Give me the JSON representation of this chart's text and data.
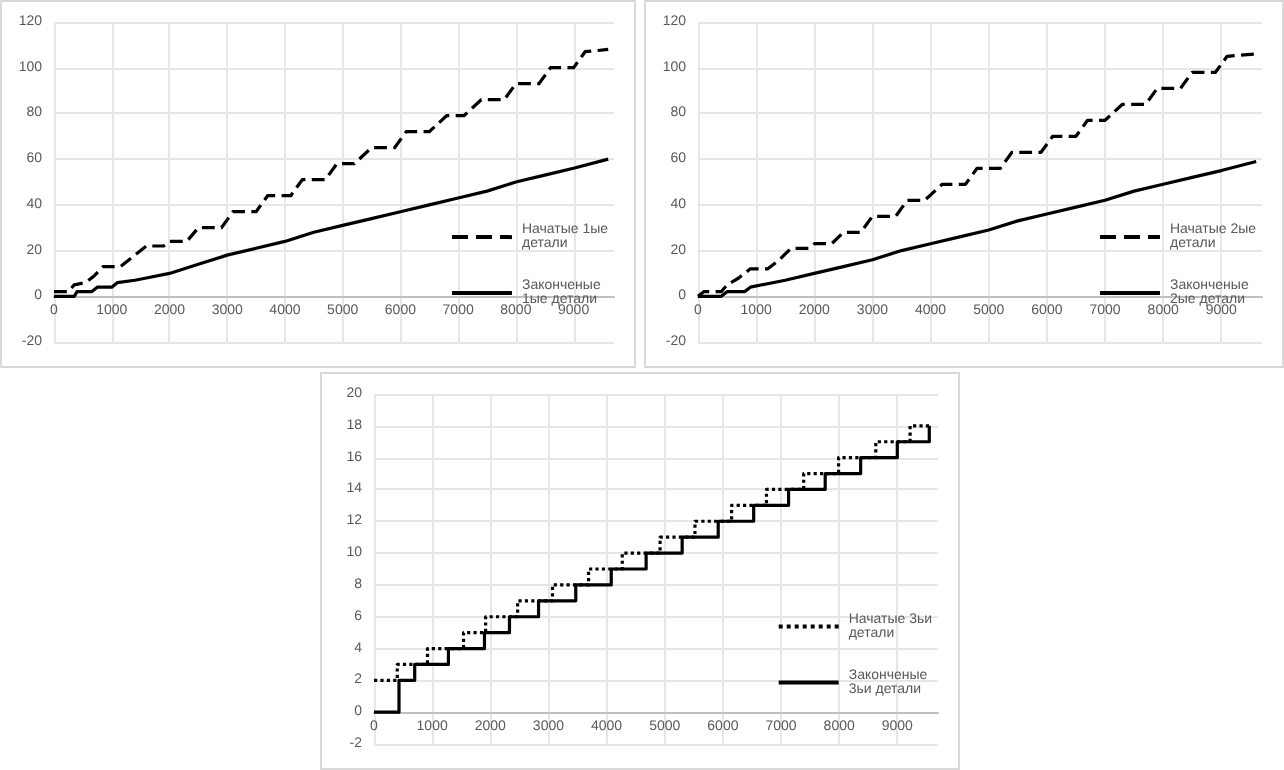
{
  "chart_data": [
    {
      "type": "line",
      "xlim": [
        0,
        9700
      ],
      "xticks": [
        0,
        1000,
        2000,
        3000,
        4000,
        5000,
        6000,
        7000,
        8000,
        9000
      ],
      "ylim": [
        -20,
        120
      ],
      "yticks": [
        -20,
        0,
        20,
        40,
        60,
        80,
        100,
        120
      ],
      "grid": true,
      "legend": "right",
      "marker": "none",
      "series": [
        {
          "name": "Начатые 1ые детали",
          "color": "#000000",
          "line_style": "dashed",
          "x": [
            0,
            250,
            350,
            550,
            700,
            850,
            1150,
            1350,
            1600,
            1900,
            2000,
            2300,
            2500,
            2900,
            3100,
            3500,
            3700,
            4100,
            4300,
            4700,
            4900,
            5200,
            5500,
            5900,
            6100,
            6500,
            6800,
            7100,
            7400,
            7800,
            8000,
            8400,
            8600,
            9000,
            9200,
            9600
          ],
          "values": [
            2,
            2,
            5,
            6,
            9,
            13,
            13,
            17,
            22,
            22,
            24,
            24,
            30,
            30,
            37,
            37,
            44,
            44,
            51,
            51,
            58,
            58,
            65,
            65,
            72,
            72,
            79,
            79,
            86,
            86,
            93,
            93,
            100,
            100,
            107,
            108
          ]
        },
        {
          "name": "Законченые 1ые детали",
          "color": "#000000",
          "line_style": "solid",
          "x": [
            0,
            350,
            400,
            650,
            750,
            1000,
            1100,
            1400,
            1600,
            2000,
            2500,
            3000,
            3500,
            4000,
            4500,
            5000,
            5500,
            6000,
            6500,
            7000,
            7500,
            8000,
            8500,
            9000,
            9600
          ],
          "values": [
            0,
            0,
            2,
            2,
            4,
            4,
            6,
            7,
            8,
            10,
            14,
            18,
            21,
            24,
            28,
            31,
            34,
            37,
            40,
            43,
            46,
            50,
            53,
            56,
            60
          ]
        }
      ]
    },
    {
      "type": "line",
      "xlim": [
        0,
        9700
      ],
      "xticks": [
        0,
        1000,
        2000,
        3000,
        4000,
        5000,
        6000,
        7000,
        8000,
        9000
      ],
      "ylim": [
        -20,
        120
      ],
      "yticks": [
        -20,
        0,
        20,
        40,
        60,
        80,
        100,
        120
      ],
      "grid": true,
      "legend": "right",
      "marker": "none",
      "series": [
        {
          "name": "Начатые 2ые детали",
          "color": "#000000",
          "line_style": "dashed",
          "x": [
            0,
            100,
            400,
            500,
            700,
            900,
            1200,
            1400,
            1600,
            1900,
            2000,
            2300,
            2500,
            2800,
            3000,
            3400,
            3600,
            3900,
            4200,
            4600,
            4800,
            5200,
            5400,
            5900,
            6100,
            6500,
            6700,
            7000,
            7300,
            7700,
            7900,
            8300,
            8500,
            8900,
            9100,
            9600
          ],
          "values": [
            0,
            2,
            2,
            5,
            8,
            12,
            12,
            16,
            21,
            21,
            23,
            23,
            28,
            28,
            35,
            35,
            42,
            42,
            49,
            49,
            56,
            56,
            63,
            63,
            70,
            70,
            77,
            77,
            84,
            84,
            91,
            91,
            98,
            98,
            105,
            106
          ]
        },
        {
          "name": "Законченые 2ые детали",
          "color": "#000000",
          "line_style": "solid",
          "x": [
            0,
            400,
            500,
            800,
            900,
            1500,
            2000,
            2500,
            3000,
            3500,
            4000,
            4500,
            5000,
            5500,
            6000,
            6500,
            7000,
            7500,
            8000,
            8500,
            9000,
            9600
          ],
          "values": [
            0,
            0,
            2,
            2,
            4,
            7,
            10,
            13,
            16,
            20,
            23,
            26,
            29,
            33,
            36,
            39,
            42,
            46,
            49,
            52,
            55,
            59
          ]
        }
      ]
    },
    {
      "type": "step",
      "xlim": [
        0,
        9700
      ],
      "xticks": [
        0,
        1000,
        2000,
        3000,
        4000,
        5000,
        6000,
        7000,
        8000,
        9000
      ],
      "ylim": [
        -2,
        20
      ],
      "yticks": [
        -2,
        0,
        2,
        4,
        6,
        8,
        10,
        12,
        14,
        16,
        18,
        20
      ],
      "grid": true,
      "legend": "right",
      "marker": "none",
      "series": [
        {
          "name": "Начатые 3ьи детали",
          "color": "#000000",
          "line_style": "dotted",
          "x": [
            0,
            400,
            920,
            1540,
            1920,
            2470,
            3070,
            3690,
            4270,
            4920,
            5520,
            6150,
            6750,
            7390,
            7990,
            8630,
            9220,
            9600
          ],
          "values": [
            2,
            3,
            4,
            5,
            6,
            7,
            8,
            9,
            10,
            11,
            12,
            13,
            14,
            15,
            16,
            17,
            18,
            18
          ]
        },
        {
          "name": "Законченые 3ьи детали",
          "color": "#000000",
          "line_style": "solid",
          "x": [
            0,
            430,
            700,
            1280,
            1900,
            2330,
            2830,
            3470,
            4080,
            4680,
            5300,
            5920,
            6530,
            7130,
            7760,
            8370,
            9000,
            9550
          ],
          "values": [
            0,
            2,
            3,
            4,
            5,
            6,
            7,
            8,
            9,
            10,
            11,
            12,
            13,
            14,
            15,
            16,
            17,
            18
          ]
        }
      ]
    }
  ]
}
